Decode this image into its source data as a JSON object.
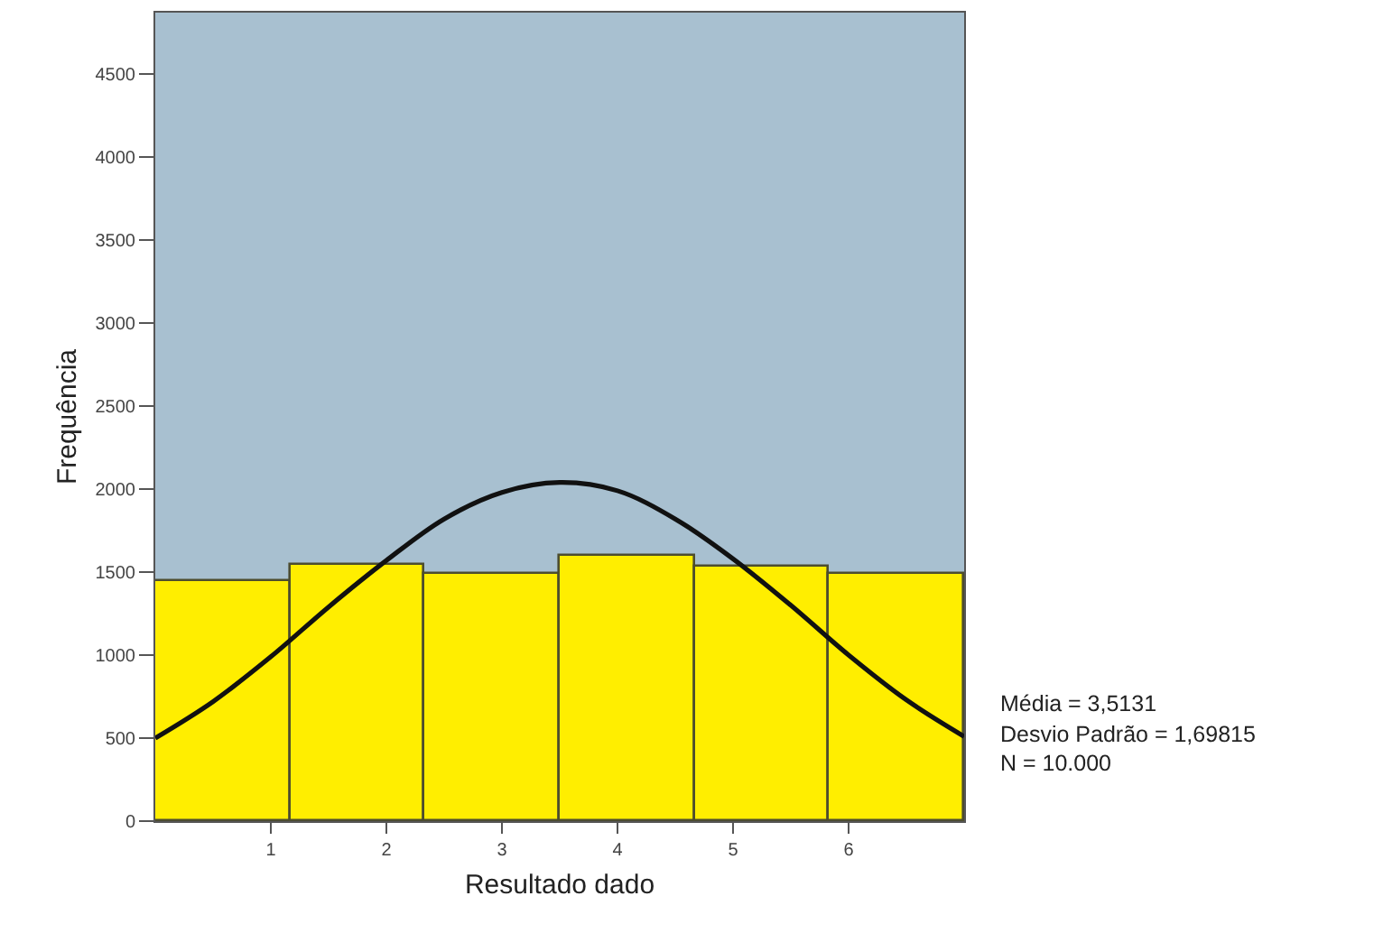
{
  "chart_data": {
    "type": "histogram",
    "xlabel": "Resultado dado",
    "ylabel": "Frequência",
    "bins": [
      0,
      1.17,
      2.33,
      3.5,
      4.67,
      5.83,
      7
    ],
    "values": [
      1450,
      1540,
      1490,
      1600,
      1530,
      1490
    ],
    "color": "#ffee00",
    "series": [
      {
        "type": "line",
        "color": "#111111",
        "x": [
          0,
          0.5,
          1,
          1.5,
          2,
          2.5,
          3,
          3.5,
          4,
          4.5,
          5,
          5.5,
          6,
          6.5,
          7
        ],
        "values": [
          500,
          720,
          990,
          1290,
          1570,
          1820,
          1980,
          2040,
          1990,
          1820,
          1580,
          1300,
          1000,
          730,
          510
        ]
      }
    ],
    "xlim": [
      0,
      7
    ],
    "xticks": [
      1,
      2,
      3,
      4,
      5,
      6
    ],
    "ylim": [
      0,
      4870
    ],
    "yticks": [
      0,
      500,
      1000,
      1500,
      2000,
      2500,
      3000,
      3500,
      4000,
      4500
    ],
    "grid": false,
    "line_style": "solid",
    "marker": "none",
    "annotations": [
      "Média = 3,5131",
      "Desvio Padrão = 1,69815",
      "N = 10.000"
    ]
  }
}
